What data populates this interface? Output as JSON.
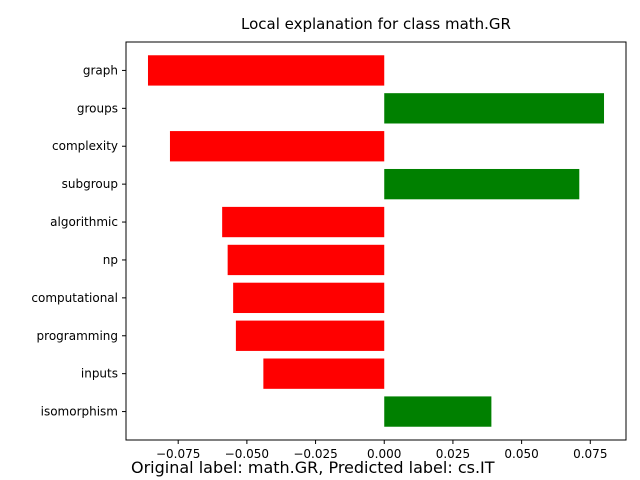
{
  "chart_data": {
    "type": "bar",
    "orientation": "horizontal",
    "title": "Local explanation for class math.GR",
    "categories": [
      "graph",
      "groups",
      "complexity",
      "subgroup",
      "algorithmic",
      "np",
      "computational",
      "programming",
      "inputs",
      "isomorphism"
    ],
    "values": [
      -0.086,
      0.08,
      -0.078,
      0.071,
      -0.059,
      -0.057,
      -0.055,
      -0.054,
      -0.044,
      0.039
    ],
    "xlim": [
      -0.094,
      0.088
    ],
    "xticks": [
      -0.075,
      -0.05,
      -0.025,
      0.0,
      0.025,
      0.05,
      0.075
    ],
    "xtick_labels": [
      "−0.075",
      "−0.050",
      "−0.025",
      "0.000",
      "0.025",
      "0.050",
      "0.075"
    ],
    "xlabel": "",
    "ylabel": "",
    "colors": {
      "positive": "#008000",
      "negative": "#ff0000"
    }
  },
  "caption": "Original label: math.GR, Predicted label: cs.IT"
}
